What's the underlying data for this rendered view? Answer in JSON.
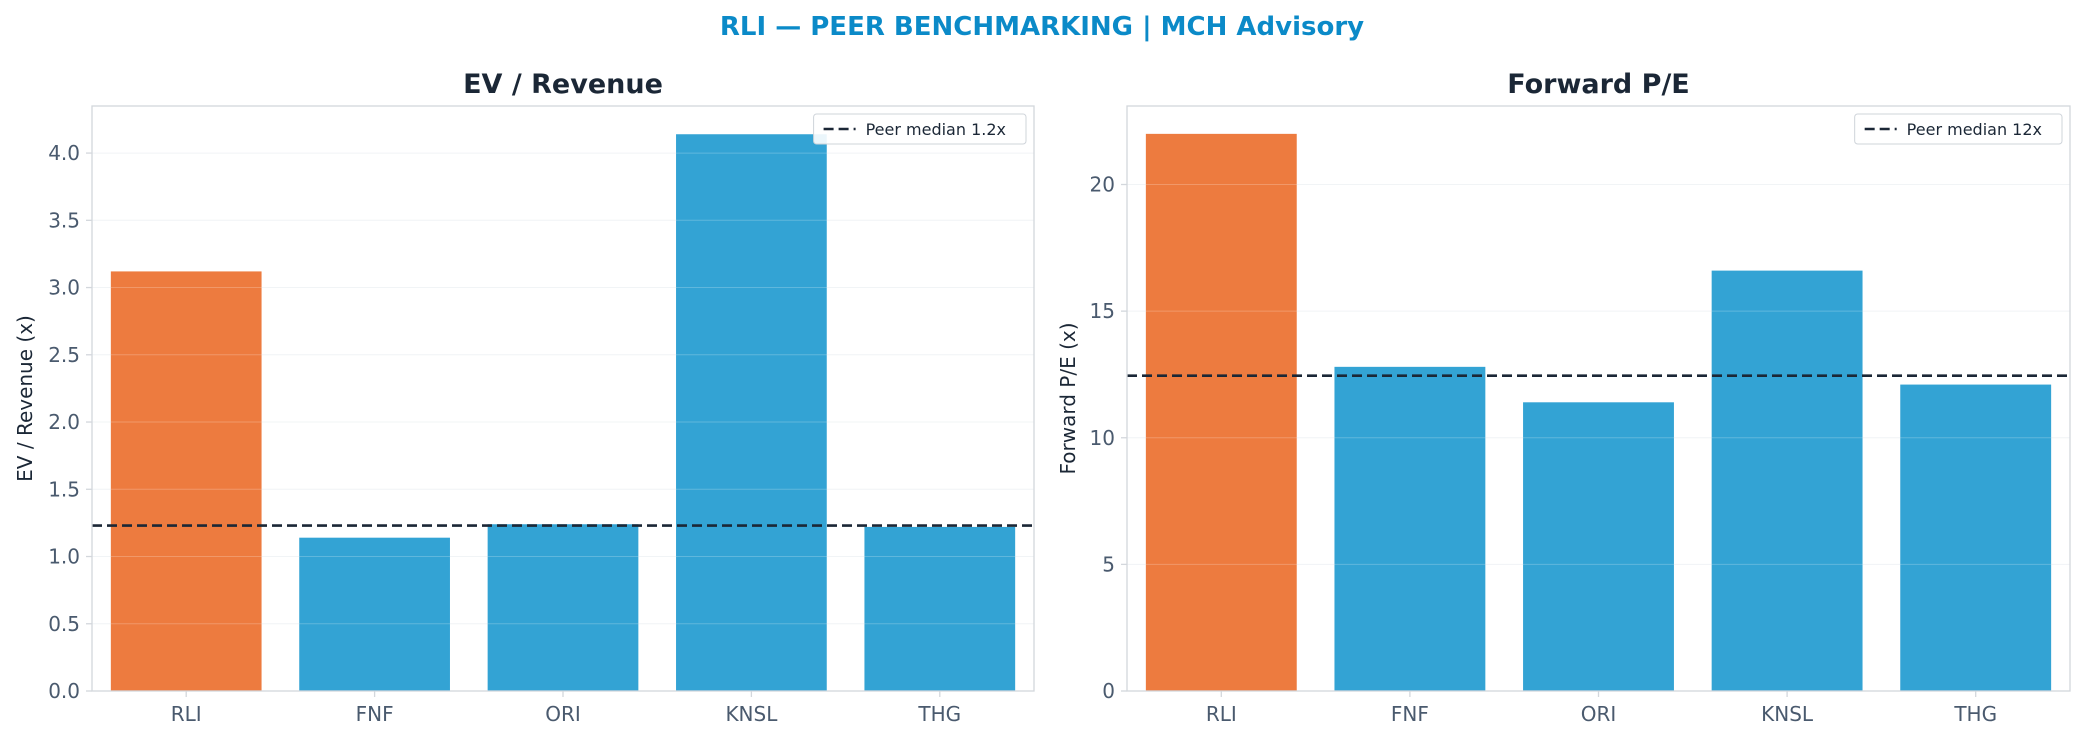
{
  "suptitle": "RLI — PEER BENCHMARKING | MCH Advisory",
  "colors": {
    "highlight": "#ED7B3F",
    "peer": "#33A3D4",
    "median_line": "#1B2736",
    "title_accent": "#0B8AC8",
    "axis": "#D3D7DC",
    "grid": "#EEF1F4"
  },
  "chart_data": [
    {
      "type": "bar",
      "title": "EV / Revenue",
      "xlabel": "",
      "ylabel": "EV / Revenue (x)",
      "categories": [
        "RLI",
        "FNF",
        "ORI",
        "KNSL",
        "THG"
      ],
      "values": [
        3.12,
        1.14,
        1.24,
        4.14,
        1.22
      ],
      "highlight": "RLI",
      "ylim": [
        0,
        4.35
      ],
      "yticks": [
        0.0,
        0.5,
        1.0,
        1.5,
        2.0,
        2.5,
        3.0,
        3.5,
        4.0
      ],
      "ytick_labels": [
        "0.0",
        "0.5",
        "1.0",
        "1.5",
        "2.0",
        "2.5",
        "3.0",
        "3.5",
        "4.0"
      ],
      "reference_line": {
        "value": 1.23,
        "label": "Peer median 1.2x"
      },
      "legend": "top-right",
      "grid": true
    },
    {
      "type": "bar",
      "title": "Forward P/E",
      "xlabel": "",
      "ylabel": "Forward P/E (x)",
      "categories": [
        "RLI",
        "FNF",
        "ORI",
        "KNSL",
        "THG"
      ],
      "values": [
        22.0,
        12.8,
        11.4,
        16.6,
        12.1
      ],
      "highlight": "RLI",
      "ylim": [
        0,
        23.1
      ],
      "yticks": [
        0,
        5,
        10,
        15,
        20
      ],
      "ytick_labels": [
        "0",
        "5",
        "10",
        "15",
        "20"
      ],
      "reference_line": {
        "value": 12.45,
        "label": "Peer median 12x"
      },
      "legend": "top-right",
      "grid": true
    }
  ]
}
